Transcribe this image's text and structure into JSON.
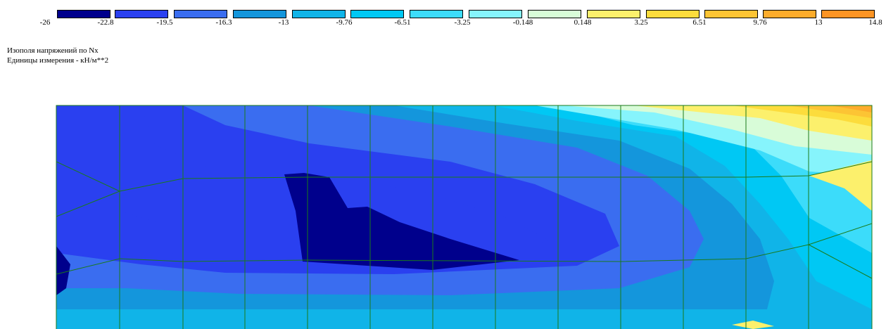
{
  "chart_data": {
    "type": "heatmap",
    "title": "Изополя напряжений по Nx",
    "subtitle": "Единицы измерения - кН/м**2",
    "legend": {
      "ticks": [
        "-26",
        "-22.8",
        "-19.5",
        "-16.3",
        "-13",
        "-9.76",
        "-6.51",
        "-3.25",
        "-0.148",
        "0.148",
        "3.25",
        "6.51",
        "9.76",
        "13",
        "14.8"
      ],
      "colors": [
        "#00008c",
        "#2a40f0",
        "#3a6df0",
        "#1496dc",
        "#10b4e8",
        "#00c8f4",
        "#3cdcfa",
        "#86f4fc",
        "#d8fcd8",
        "#fcf06c",
        "#fcdc3c",
        "#fcc434",
        "#fcac2c",
        "#fc9424"
      ],
      "placement": "top"
    },
    "band_values": [
      -24.4,
      -21.15,
      -17.9,
      -14.65,
      -11.38,
      -8.13,
      -4.88,
      -1.7,
      0.0,
      1.7,
      4.88,
      8.13,
      11.38,
      13.9
    ]
  },
  "style": {
    "mesh_color": "#1a7a1a",
    "border_color": "#1a7a1a"
  }
}
